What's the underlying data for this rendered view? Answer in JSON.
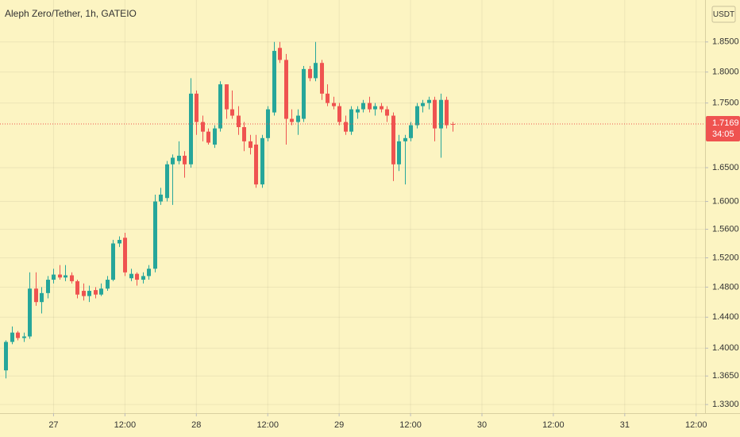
{
  "chart_data": {
    "type": "candlestick",
    "title": "Aleph Zero/Tether, 1h, GATEIO",
    "unit": "USDT",
    "last_price": 1.7169,
    "countdown": "34:05",
    "log_scale": true,
    "grid": true,
    "up_color": "#26a69a",
    "down_color": "#ef5350",
    "x": [
      -8,
      -7,
      -6,
      -5,
      -4,
      -3,
      -2,
      -1,
      0,
      1,
      2,
      3,
      4,
      5,
      6,
      7,
      8,
      9,
      10,
      11,
      12,
      13,
      14,
      15,
      16,
      17,
      18,
      19,
      20,
      21,
      22,
      23,
      24,
      25,
      26,
      27,
      28,
      29,
      30,
      31,
      32,
      33,
      34,
      35,
      36,
      37,
      38,
      39,
      40,
      41,
      42,
      43,
      44,
      45,
      46,
      47,
      48,
      49,
      50,
      51,
      52,
      53,
      54,
      55,
      56,
      57,
      58,
      59,
      60,
      61,
      62,
      63,
      64,
      65,
      66,
      67
    ],
    "open": [
      1.372,
      1.408,
      1.42,
      1.413,
      1.415,
      1.478,
      1.46,
      1.472,
      1.49,
      1.497,
      1.493,
      1.496,
      1.488,
      1.475,
      1.468,
      1.476,
      1.47,
      1.478,
      1.49,
      1.54,
      1.548,
      1.492,
      1.498,
      1.49,
      1.495,
      1.505,
      1.6,
      1.605,
      1.655,
      1.66,
      1.668,
      1.655,
      1.765,
      1.72,
      1.705,
      1.685,
      1.71,
      1.78,
      1.74,
      1.73,
      1.712,
      1.69,
      1.685,
      1.625,
      1.695,
      1.735,
      1.84,
      1.82,
      1.725,
      1.72,
      1.725,
      1.805,
      1.79,
      1.815,
      1.765,
      1.75,
      1.745,
      1.72,
      1.705,
      1.735,
      1.74,
      1.75,
      1.74,
      1.745,
      1.74,
      1.73,
      1.655,
      1.69,
      1.695,
      1.715,
      1.745,
      1.75,
      1.755,
      1.71,
      1.755,
      1.717
    ],
    "high": [
      1.41,
      1.428,
      1.422,
      1.42,
      1.5,
      1.5,
      1.48,
      1.495,
      1.505,
      1.51,
      1.51,
      1.5,
      1.49,
      1.485,
      1.482,
      1.48,
      1.485,
      1.495,
      1.545,
      1.55,
      1.555,
      1.505,
      1.5,
      1.5,
      1.51,
      1.61,
      1.62,
      1.66,
      1.67,
      1.69,
      1.675,
      1.79,
      1.77,
      1.73,
      1.71,
      1.715,
      1.785,
      1.78,
      1.77,
      1.745,
      1.72,
      1.7,
      1.7,
      1.7,
      1.745,
      1.85,
      1.85,
      1.83,
      1.74,
      1.74,
      1.81,
      1.81,
      1.85,
      1.82,
      1.78,
      1.76,
      1.75,
      1.73,
      1.745,
      1.745,
      1.755,
      1.76,
      1.75,
      1.75,
      1.745,
      1.735,
      1.7,
      1.7,
      1.72,
      1.75,
      1.755,
      1.76,
      1.76,
      1.765,
      1.76,
      1.72
    ],
    "low": [
      1.362,
      1.405,
      1.41,
      1.408,
      1.412,
      1.455,
      1.445,
      1.465,
      1.485,
      1.49,
      1.488,
      1.485,
      1.465,
      1.462,
      1.46,
      1.465,
      1.468,
      1.475,
      1.488,
      1.535,
      1.495,
      1.488,
      1.482,
      1.485,
      1.49,
      1.5,
      1.595,
      1.6,
      1.595,
      1.655,
      1.635,
      1.65,
      1.7,
      1.69,
      1.685,
      1.68,
      1.705,
      1.725,
      1.725,
      1.7,
      1.675,
      1.67,
      1.62,
      1.62,
      1.69,
      1.73,
      1.815,
      1.685,
      1.715,
      1.7,
      1.72,
      1.785,
      1.785,
      1.755,
      1.745,
      1.74,
      1.715,
      1.7,
      1.7,
      1.725,
      1.735,
      1.735,
      1.73,
      1.735,
      1.72,
      1.63,
      1.645,
      1.625,
      1.69,
      1.71,
      1.735,
      1.74,
      1.69,
      1.665,
      1.71,
      1.705
    ],
    "close": [
      1.408,
      1.42,
      1.413,
      1.415,
      1.478,
      1.46,
      1.472,
      1.49,
      1.497,
      1.493,
      1.496,
      1.488,
      1.47,
      1.468,
      1.475,
      1.47,
      1.478,
      1.49,
      1.54,
      1.545,
      1.5,
      1.498,
      1.49,
      1.495,
      1.505,
      1.6,
      1.61,
      1.655,
      1.665,
      1.668,
      1.655,
      1.765,
      1.72,
      1.705,
      1.688,
      1.71,
      1.78,
      1.74,
      1.73,
      1.712,
      1.69,
      1.68,
      1.625,
      1.695,
      1.74,
      1.835,
      1.82,
      1.725,
      1.72,
      1.73,
      1.805,
      1.79,
      1.815,
      1.765,
      1.75,
      1.745,
      1.72,
      1.705,
      1.74,
      1.74,
      1.75,
      1.74,
      1.745,
      1.74,
      1.73,
      1.655,
      1.69,
      1.695,
      1.715,
      1.745,
      1.75,
      1.755,
      1.71,
      1.755,
      1.715,
      1.7169
    ],
    "xlim": [
      -9,
      109.5
    ],
    "xticks": [
      {
        "value": 0,
        "label": "27"
      },
      {
        "value": 12,
        "label": "12:00"
      },
      {
        "value": 24,
        "label": "28"
      },
      {
        "value": 36,
        "label": "12:00"
      },
      {
        "value": 48,
        "label": "29"
      },
      {
        "value": 60,
        "label": "12:00"
      },
      {
        "value": 72,
        "label": "30"
      },
      {
        "value": 84,
        "label": "12:00"
      },
      {
        "value": 96,
        "label": "31"
      },
      {
        "value": 108,
        "label": "12:00"
      }
    ],
    "ylim": [
      1.3196,
      1.922
    ],
    "yticks": [
      {
        "value": 1.33,
        "label": "1.3300"
      },
      {
        "value": 1.365,
        "label": "1.3650"
      },
      {
        "value": 1.4,
        "label": "1.4000"
      },
      {
        "value": 1.44,
        "label": "1.4400"
      },
      {
        "value": 1.48,
        "label": "1.4800"
      },
      {
        "value": 1.52,
        "label": "1.5200"
      },
      {
        "value": 1.56,
        "label": "1.5600"
      },
      {
        "value": 1.6,
        "label": "1.6000"
      },
      {
        "value": 1.65,
        "label": "1.6500"
      },
      {
        "value": 1.75,
        "label": "1.7500"
      },
      {
        "value": 1.8,
        "label": "1.8000"
      },
      {
        "value": 1.85,
        "label": "1.8500"
      }
    ]
  }
}
